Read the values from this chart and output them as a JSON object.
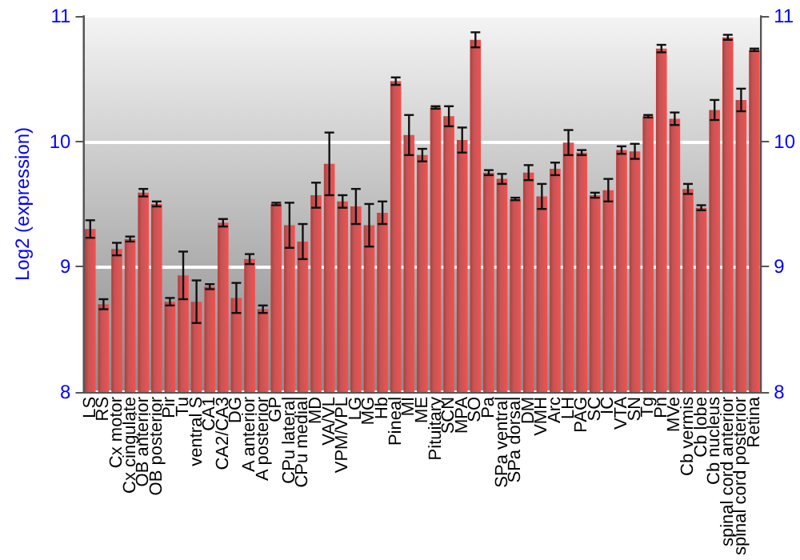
{
  "chart_data": {
    "type": "bar",
    "ylabel": "Log2 (expression)",
    "categories": [
      "LS",
      "RS",
      "Cx motor",
      "Cx cingulate",
      "OB anterior",
      "OB posterior",
      "Pir",
      "Tu",
      "ventral S",
      "CA1",
      "CA2/CA3",
      "DG",
      "A anterior",
      "A posterior",
      "GP",
      "CPu lateral",
      "CPu medial",
      "MD",
      "VA/VL",
      "VPM/VPL",
      "LG",
      "MG",
      "Hb",
      "Pineal",
      "MI",
      "ME",
      "Pituitary",
      "SCN",
      "MPA",
      "SO",
      "Pa",
      "SPa ventral",
      "SPa dorsal",
      "DM",
      "VMH",
      "Arc",
      "LH",
      "PAG",
      "SC",
      "IC",
      "VTA",
      "SN",
      "Tg",
      "Pn",
      "MVe",
      "Cb vermis",
      "Cb lobe",
      "Cb nucleus",
      "spinal cord anterior",
      "spinal cord posterior",
      "Retina"
    ],
    "values": [
      9.3,
      8.7,
      9.14,
      9.22,
      9.59,
      9.5,
      8.72,
      8.93,
      8.72,
      8.84,
      9.35,
      8.75,
      9.06,
      8.66,
      9.5,
      9.33,
      9.2,
      9.57,
      9.82,
      9.52,
      9.48,
      9.33,
      9.43,
      10.48,
      10.05,
      9.89,
      10.27,
      10.2,
      10.01,
      10.81,
      9.75,
      9.7,
      9.54,
      9.75,
      9.56,
      9.78,
      9.99,
      9.91,
      9.57,
      9.61,
      9.93,
      9.92,
      10.2,
      10.74,
      10.18,
      9.62,
      9.47,
      10.25,
      10.83,
      10.33,
      10.73
    ],
    "errors": [
      0.07,
      0.04,
      0.05,
      0.02,
      0.03,
      0.02,
      0.03,
      0.19,
      0.17,
      0.02,
      0.03,
      0.12,
      0.04,
      0.03,
      0.01,
      0.18,
      0.14,
      0.1,
      0.25,
      0.05,
      0.14,
      0.17,
      0.09,
      0.03,
      0.16,
      0.05,
      0.01,
      0.08,
      0.1,
      0.06,
      0.02,
      0.04,
      0.01,
      0.06,
      0.1,
      0.05,
      0.1,
      0.02,
      0.02,
      0.09,
      0.03,
      0.06,
      0.01,
      0.03,
      0.05,
      0.04,
      0.02,
      0.08,
      0.02,
      0.09,
      0.01
    ],
    "color": "#b83a3a",
    "ylim": [
      8,
      11
    ],
    "yticks": [
      8,
      9,
      10,
      11
    ],
    "y2lim": [
      8,
      11
    ],
    "y2ticks": [
      8,
      9,
      10,
      11
    ],
    "grid": true
  }
}
